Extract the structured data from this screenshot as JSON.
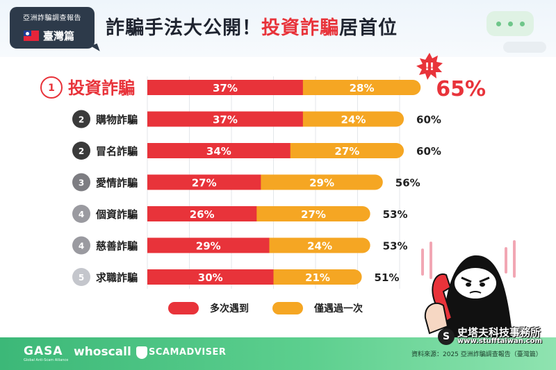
{
  "header": {
    "report_title": "亞洲詐騙調查報告",
    "report_region": "臺灣篇",
    "title_prefix": "詐騙手法大公開！",
    "title_highlight": "投資詐騙",
    "title_suffix": "居首位",
    "alert_mark": "!!"
  },
  "chart_data": {
    "type": "bar",
    "stacked": true,
    "orientation": "horizontal",
    "categories": [
      "投資詐騙",
      "購物詐騙",
      "冒名詐騙",
      "愛情詐騙",
      "個資詐騙",
      "慈善詐騙",
      "求職詐騙"
    ],
    "ranks": [
      "1",
      "2",
      "2",
      "3",
      "4",
      "4",
      "5"
    ],
    "series": [
      {
        "name": "多次遇到",
        "values": [
          37,
          37,
          34,
          27,
          26,
          29,
          30
        ],
        "labels": [
          "37%",
          "37%",
          "34%",
          "27%",
          "26%",
          "29%",
          "30%"
        ],
        "color": "#e8333a"
      },
      {
        "name": "僅遇過一次",
        "values": [
          28,
          24,
          27,
          29,
          27,
          24,
          21
        ],
        "labels": [
          "28%",
          "24%",
          "27%",
          "29%",
          "27%",
          "24%",
          "21%"
        ],
        "color": "#f5a623"
      }
    ],
    "totals": [
      "65%",
      "60%",
      "60%",
      "56%",
      "53%",
      "53%",
      "51%"
    ],
    "rank_colors": [
      "#e8333a",
      "#3a3a3a",
      "#3a3a3a",
      "#7d7d82",
      "#9a9aa0",
      "#9a9aa0",
      "#c4c6cc"
    ],
    "xlim": [
      0,
      65
    ],
    "grid": true,
    "legend_placement": "bottom"
  },
  "legend": {
    "items": [
      {
        "label": "多次遇到",
        "color": "#e8333a"
      },
      {
        "label": "僅遇過一次",
        "color": "#f5a623"
      }
    ]
  },
  "watermark": {
    "initial": "S",
    "name": "史塔夫科技事務所",
    "url": "www.stufftaiwan.com"
  },
  "footer": {
    "logos": [
      "GASA",
      "Global Anti-Scam Alliance",
      "whoscall",
      "SCAMADVISER"
    ],
    "source": "資料來源：2025 亞洲詐騙調查報告（臺灣篇）"
  }
}
